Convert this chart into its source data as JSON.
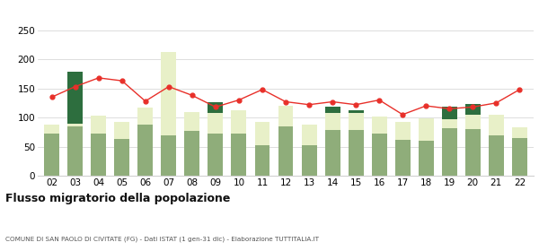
{
  "years": [
    "02",
    "03",
    "04",
    "05",
    "06",
    "07",
    "08",
    "09",
    "10",
    "11",
    "12",
    "13",
    "14",
    "15",
    "16",
    "17",
    "18",
    "19",
    "20",
    "21",
    "22"
  ],
  "iscritti_altri_comuni": [
    73,
    85,
    73,
    63,
    87,
    70,
    77,
    73,
    72,
    53,
    85,
    53,
    78,
    78,
    73,
    62,
    60,
    82,
    80,
    70,
    65
  ],
  "iscritti_estero": [
    15,
    5,
    30,
    30,
    30,
    143,
    33,
    35,
    40,
    40,
    35,
    35,
    30,
    30,
    28,
    30,
    38,
    15,
    25,
    35,
    18
  ],
  "iscritti_altri": [
    0,
    88,
    0,
    0,
    0,
    0,
    0,
    18,
    0,
    0,
    0,
    0,
    10,
    5,
    0,
    0,
    0,
    22,
    18,
    0,
    0
  ],
  "cancellati": [
    135,
    153,
    168,
    163,
    128,
    153,
    138,
    118,
    130,
    148,
    127,
    122,
    127,
    122,
    130,
    105,
    120,
    115,
    118,
    125,
    148
  ],
  "color_altri_comuni": "#8fad7a",
  "color_estero": "#e8f0c8",
  "color_altri": "#2d6e3e",
  "color_cancellati": "#e8302a",
  "title": "Flusso migratorio della popolazione",
  "subtitle": "COMUNE DI SAN PAOLO DI CIVITATE (FG) - Dati ISTAT (1 gen-31 dic) - Elaborazione TUTTITALIA.IT",
  "ylim": [
    0,
    250
  ],
  "yticks": [
    0,
    50,
    100,
    150,
    200,
    250
  ],
  "background": "#ffffff",
  "grid_color": "#d0d0d0"
}
